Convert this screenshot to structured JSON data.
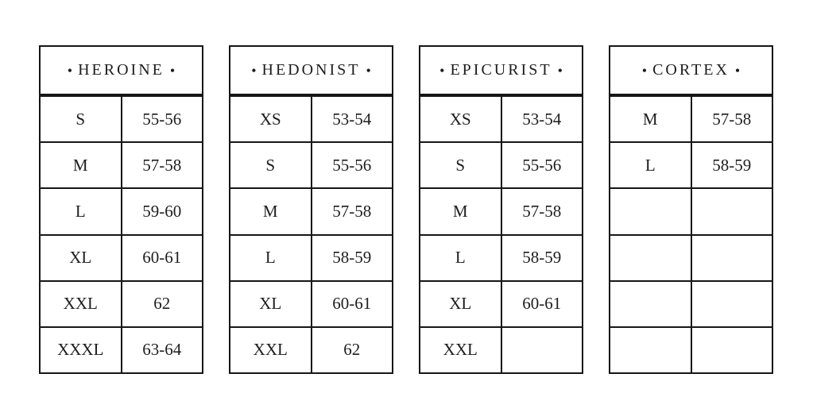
{
  "decor": {
    "bullet": "•"
  },
  "colors": {
    "background": "#ffffff",
    "text": "#1d1d1d",
    "border": "#161616"
  },
  "tables": [
    {
      "brand": "HEROINE",
      "rows": [
        {
          "size": "S",
          "range": "55-56"
        },
        {
          "size": "M",
          "range": "57-58"
        },
        {
          "size": "L",
          "range": "59-60"
        },
        {
          "size": "XL",
          "range": "60-61"
        },
        {
          "size": "XXL",
          "range": "62"
        },
        {
          "size": "XXXL",
          "range": "63-64"
        }
      ]
    },
    {
      "brand": "HEDONIST",
      "rows": [
        {
          "size": "XS",
          "range": "53-54"
        },
        {
          "size": "S",
          "range": "55-56"
        },
        {
          "size": "M",
          "range": "57-58"
        },
        {
          "size": "L",
          "range": "58-59"
        },
        {
          "size": "XL",
          "range": "60-61"
        },
        {
          "size": "XXL",
          "range": "62"
        }
      ]
    },
    {
      "brand": "EPICURIST",
      "rows": [
        {
          "size": "XS",
          "range": "53-54"
        },
        {
          "size": "S",
          "range": "55-56"
        },
        {
          "size": "M",
          "range": "57-58"
        },
        {
          "size": "L",
          "range": "58-59"
        },
        {
          "size": "XL",
          "range": "60-61"
        },
        {
          "size": "XXL",
          "range": ""
        }
      ]
    },
    {
      "brand": "CORTEX",
      "rows": [
        {
          "size": "M",
          "range": "57-58"
        },
        {
          "size": "L",
          "range": "58-59"
        },
        {
          "size": "",
          "range": ""
        },
        {
          "size": "",
          "range": ""
        },
        {
          "size": "",
          "range": ""
        },
        {
          "size": "",
          "range": ""
        }
      ]
    }
  ]
}
